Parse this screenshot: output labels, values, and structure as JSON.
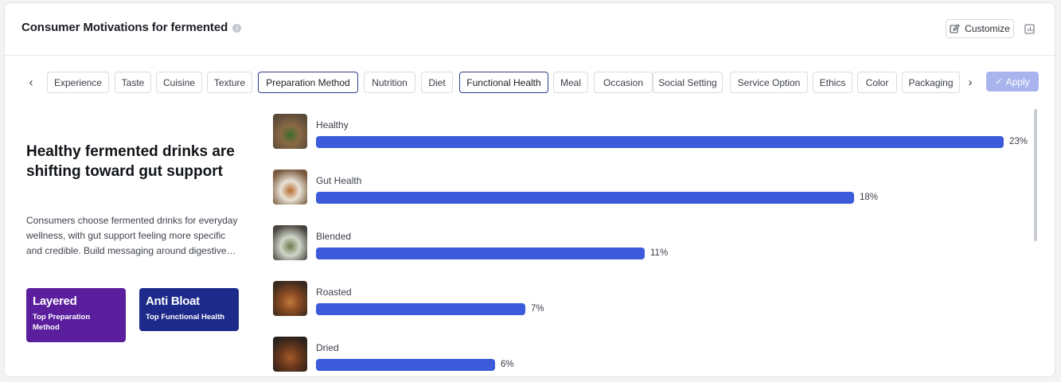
{
  "header": {
    "title": "Consumer Motivations for fermented",
    "customize_label": "Customize"
  },
  "tabs": [
    {
      "label": "Experience",
      "active": false
    },
    {
      "label": "Taste",
      "active": false
    },
    {
      "label": "Cuisine",
      "active": false
    },
    {
      "label": "Texture",
      "active": false
    },
    {
      "label": "Preparation Method",
      "active": true
    },
    {
      "label": "Nutrition",
      "active": false
    },
    {
      "label": "Diet",
      "active": false
    },
    {
      "label": "Functional Health",
      "active": true
    },
    {
      "label": "Meal",
      "active": false
    },
    {
      "label": "Occasion",
      "active": false
    },
    {
      "label": "Social Setting",
      "active": false
    },
    {
      "label": "Service Option",
      "active": false
    },
    {
      "label": "Ethics",
      "active": false
    },
    {
      "label": "Color",
      "active": false
    },
    {
      "label": "Packaging",
      "active": false
    }
  ],
  "apply_label": "Apply",
  "insight": {
    "headline": "Healthy fermented drinks are shifting toward gut support",
    "description": "Consumers choose fermented drinks for everyday wellness, with gut support feeling more specific and credible. Build messaging around digestive…"
  },
  "badges": [
    {
      "title": "Layered",
      "subtitle": "Top Preparation Method",
      "color": "#5b1f9e"
    },
    {
      "title": "Anti Bloat",
      "subtitle": "Top Functional Health",
      "color": "#1d2a8a"
    }
  ],
  "chart_data": {
    "type": "bar",
    "categories": [
      "Healthy",
      "Gut Health",
      "Blended",
      "Roasted",
      "Dried"
    ],
    "values": [
      23,
      18,
      11,
      7,
      6
    ],
    "value_labels": [
      "23%",
      "18%",
      "11%",
      "7%",
      "6%"
    ],
    "max": 23,
    "bar_color": "#3b5bdb"
  },
  "colors": {
    "accent": "#3b5bdb",
    "apply_disabled": "#a9b4ee"
  }
}
